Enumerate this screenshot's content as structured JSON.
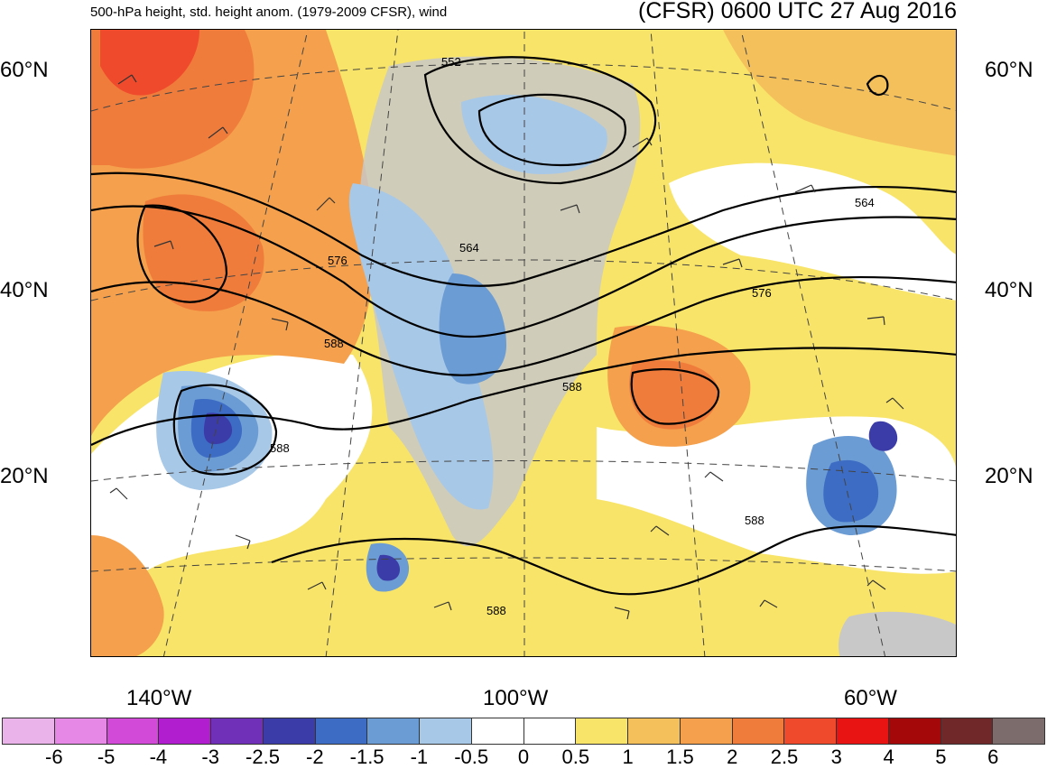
{
  "header": {
    "left_title": "500-hPa height, std. height anom. (1979-2009 CFSR), wind",
    "right_title": "(CFSR) 0600 UTC 27 Aug 2016"
  },
  "map": {
    "lat_labels": [
      "60°N",
      "40°N",
      "20°N"
    ],
    "lon_labels": [
      "140°W",
      "100°W",
      "60°W"
    ],
    "contour_labels": [
      "552",
      "564",
      "576",
      "588",
      "588",
      "588",
      "588",
      "564",
      "576",
      "588"
    ],
    "colors": {
      "land": "#c8c8c8",
      "ocean": "#ffffff",
      "contour": "#000000",
      "graticule": "#444444"
    }
  },
  "colorbar": {
    "colors": [
      "#eab4ea",
      "#e688e6",
      "#d24ad8",
      "#b01ed0",
      "#7030b8",
      "#3c3ca8",
      "#3c6cc4",
      "#6c9cd4",
      "#a8c8e8",
      "#ffffff",
      "#ffffff",
      "#f8e468",
      "#f4c05c",
      "#f4a04c",
      "#f07c3c",
      "#f04a2c",
      "#e81414",
      "#a40808",
      "#702828",
      "#7c6c6c"
    ],
    "labels": [
      "-6",
      "-5",
      "-4",
      "-3",
      "-2.5",
      "-2",
      "-1.5",
      "-1",
      "-0.5",
      "0",
      "0.5",
      "1",
      "1.5",
      "2",
      "2.5",
      "3",
      "4",
      "5",
      "6"
    ]
  }
}
